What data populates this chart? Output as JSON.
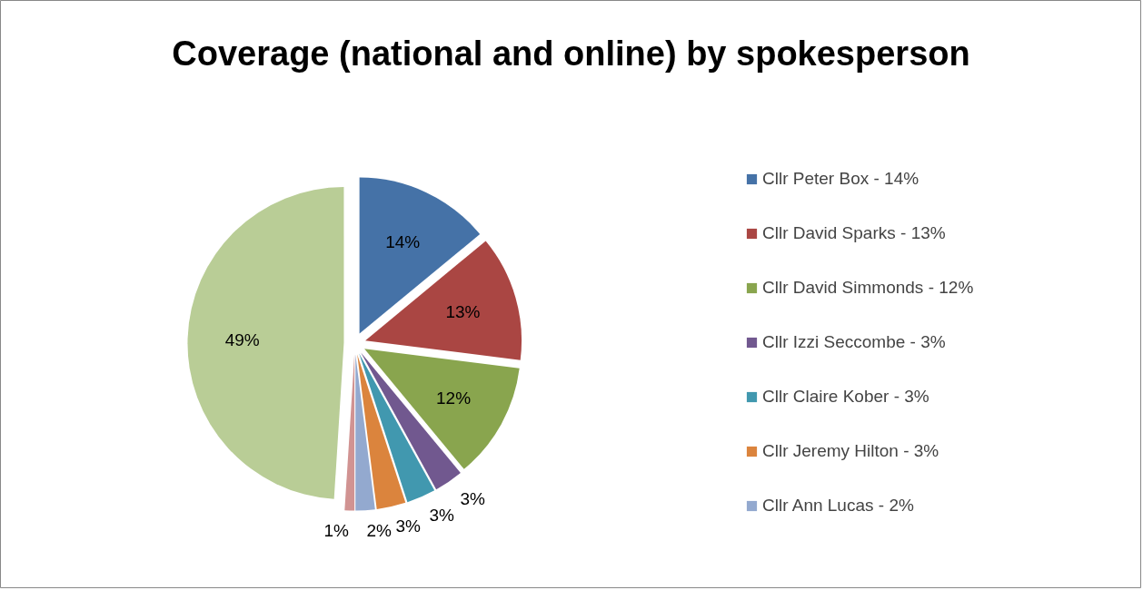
{
  "chart_data": {
    "type": "pie",
    "title": "Coverage (national and online) by spokesperson",
    "categories": [
      "Cllr Peter Box - 14%",
      "Cllr David Sparks - 13%",
      "Cllr David Simmonds - 12%",
      "Cllr Izzi Seccombe - 3%",
      "Cllr Claire Kober - 3%",
      "Cllr Jeremy Hilton - 3%",
      "Cllr Ann Lucas - 2%",
      null,
      null
    ],
    "values": [
      14,
      13,
      12,
      3,
      3,
      3,
      2,
      1,
      49
    ],
    "colors": [
      "#4572a7",
      "#aa4643",
      "#89a54e",
      "#71588f",
      "#4198af",
      "#db843d",
      "#93a9cf",
      "#d19392",
      "#b9cd96"
    ],
    "value_labels": [
      "14%",
      "13%",
      "12%",
      "3%",
      "3%",
      "3%",
      "2%",
      "1%",
      "49%"
    ],
    "legend": "right"
  }
}
